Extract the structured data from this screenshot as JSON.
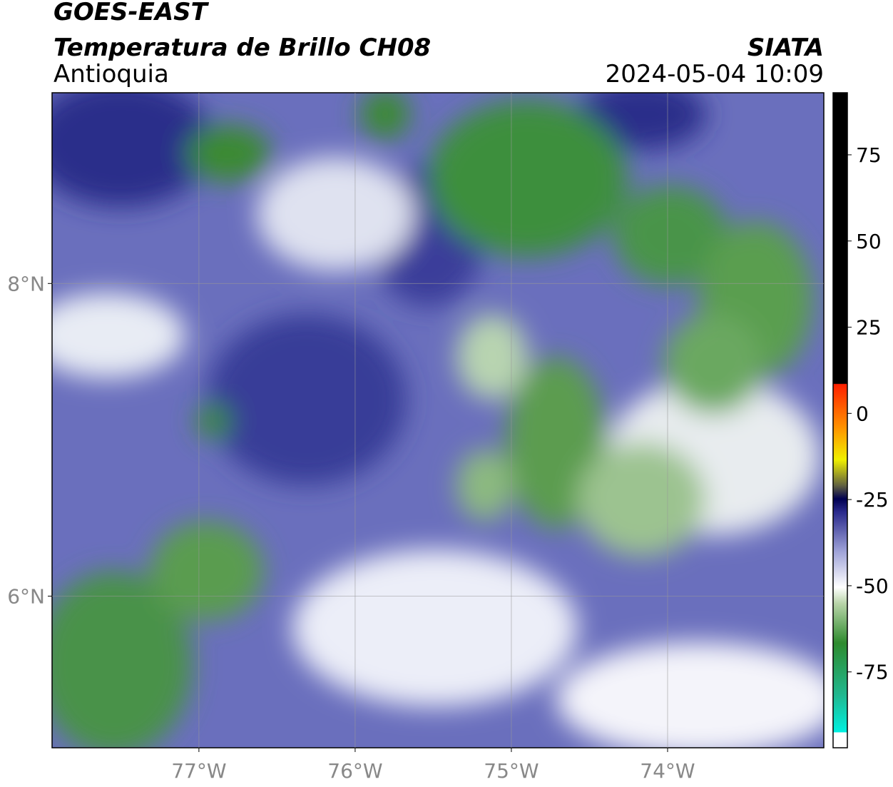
{
  "header": {
    "title": "GOES-EAST",
    "subtitle": "Temperatura de Brillo CH08",
    "region": "Antioquia",
    "source": "SIATA",
    "datetime": "2024-05-04 10:09"
  },
  "map": {
    "xlim": [
      -77.94,
      -73.0
    ],
    "ylim": [
      5.03,
      9.22
    ],
    "xticks": [
      {
        "value": -77,
        "label": "77°W"
      },
      {
        "value": -76,
        "label": "76°W"
      },
      {
        "value": -75,
        "label": "75°W"
      },
      {
        "value": -74,
        "label": "74°W"
      }
    ],
    "yticks": [
      {
        "value": 8,
        "label": "8°N"
      },
      {
        "value": 6,
        "label": "6°N"
      }
    ],
    "grid": true
  },
  "colorbar": {
    "clim": [
      -97,
      93
    ],
    "ticks": [
      75,
      50,
      25,
      0,
      -25,
      -50,
      -75
    ]
  }
}
